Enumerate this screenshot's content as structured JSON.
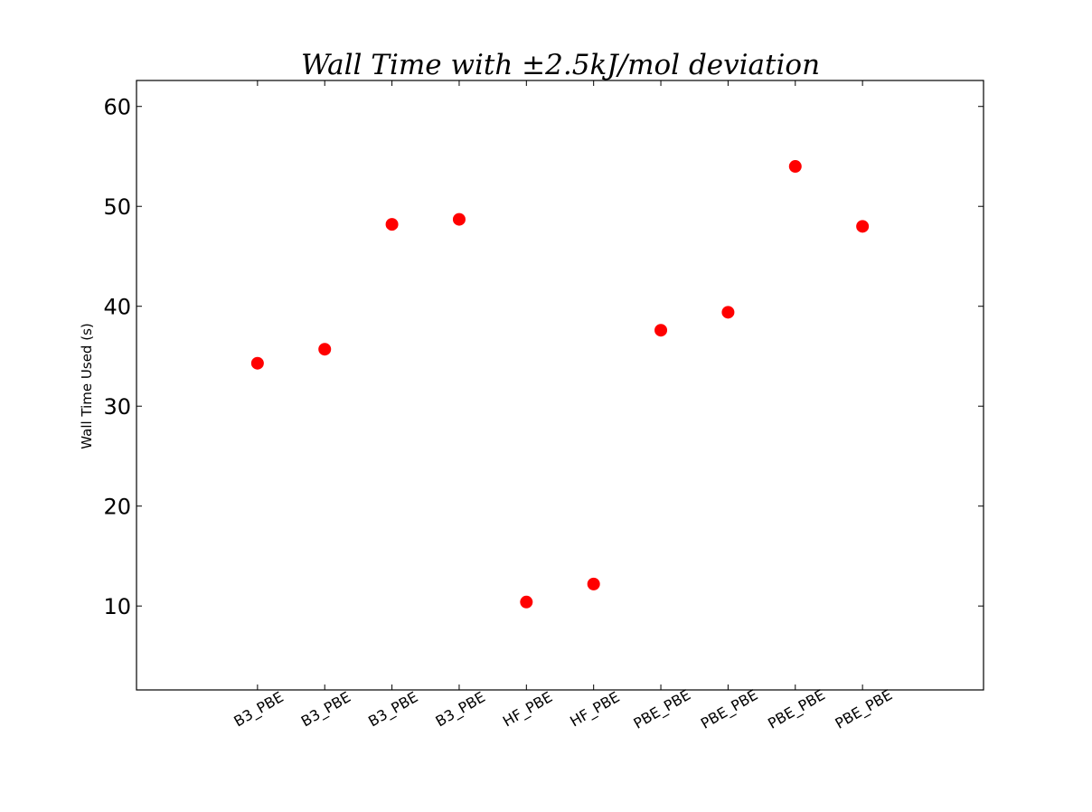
{
  "chart_data": {
    "type": "scatter",
    "title": "Wall Time with ±2.5kJ/mol deviation",
    "xlabel": "",
    "ylabel": "Wall Time Used (s)",
    "categories": [
      "B3_PBE",
      "B3_PBE",
      "B3_PBE",
      "B3_PBE",
      "HF_PBE",
      "HF_PBE",
      "PBE_PBE",
      "PBE_PBE",
      "PBE_PBE",
      "PBE_PBE"
    ],
    "values": [
      34.3,
      35.7,
      48.2,
      48.7,
      10.4,
      12.2,
      37.6,
      39.4,
      54.0,
      48.0
    ],
    "xlim": [
      -1.8,
      10.8
    ],
    "ylim": [
      1.6,
      62.6
    ],
    "yticks": [
      10,
      20,
      30,
      40,
      50,
      60
    ],
    "marker_color": "#ff0000",
    "grid": false,
    "legend": "none"
  }
}
